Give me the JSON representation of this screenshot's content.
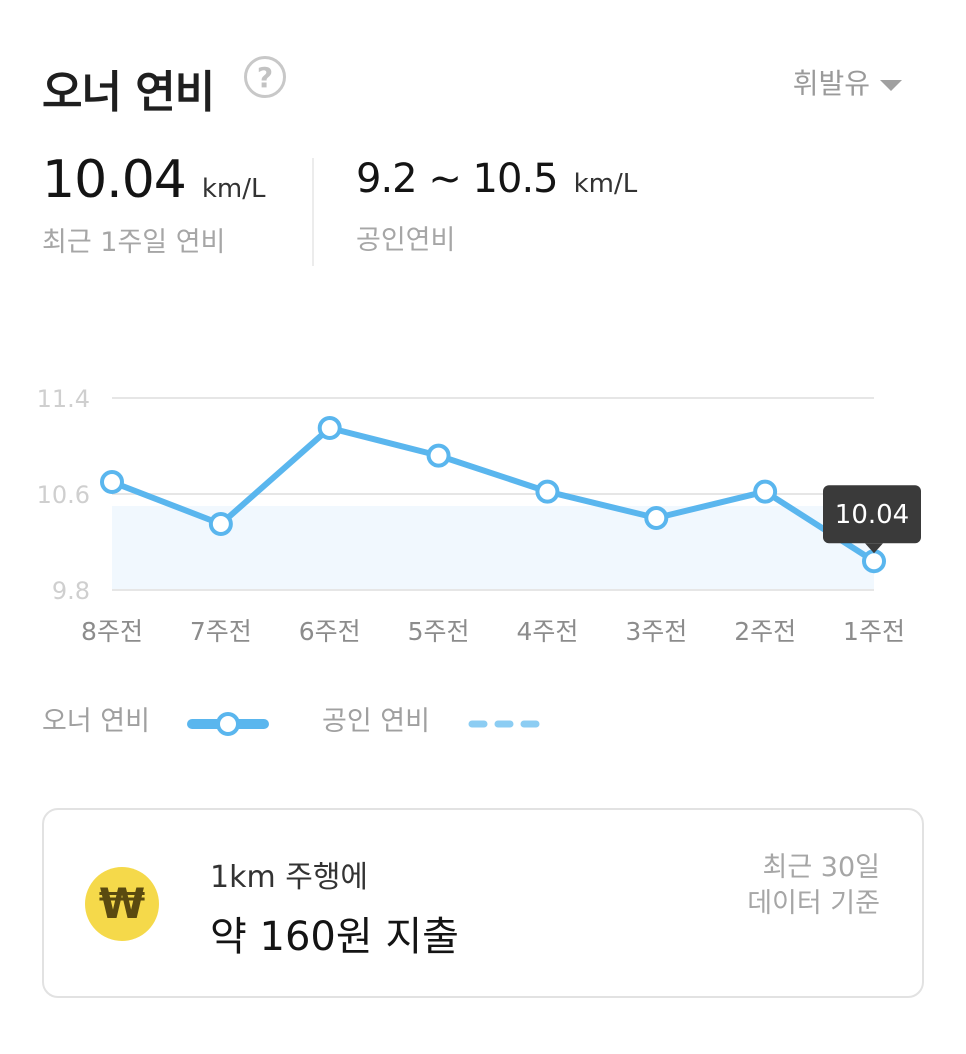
{
  "header": {
    "title": "오너 연비",
    "help_symbol": "?",
    "fuel_type": "휘발유"
  },
  "stats": {
    "recent": {
      "value": "10.04",
      "unit": "km/L",
      "caption": "최근 1주일 연비"
    },
    "official": {
      "value": "9.2 ~ 10.5",
      "unit": "km/L",
      "caption": "공인연비"
    }
  },
  "chart_data": {
    "type": "line",
    "categories": [
      "8주전",
      "7주전",
      "6주전",
      "5주전",
      "4주전",
      "3주전",
      "2주전",
      "1주전"
    ],
    "series": [
      {
        "name": "오너 연비",
        "values": [
          10.7,
          10.35,
          11.15,
          10.92,
          10.62,
          10.4,
          10.62,
          10.04
        ],
        "color": "#5ab6ee"
      }
    ],
    "official_range": [
      9.2,
      10.5
    ],
    "yticks": [
      "11.4",
      "10.6",
      "9.8"
    ],
    "ylim": [
      9.8,
      11.4
    ],
    "grid": true,
    "tooltip": {
      "category": "1주전",
      "label": "10.04"
    },
    "band_color": "#f1f8fe"
  },
  "legend": {
    "owner_label": "오너 연비",
    "official_label": "공인 연비"
  },
  "card": {
    "line1": "1km 주행에",
    "line2": "약 160원 지출",
    "note_line1": "최근 30일",
    "note_line2": "데이터 기준",
    "coin_symbol": "₩",
    "coin_color": "#f5d94a"
  }
}
